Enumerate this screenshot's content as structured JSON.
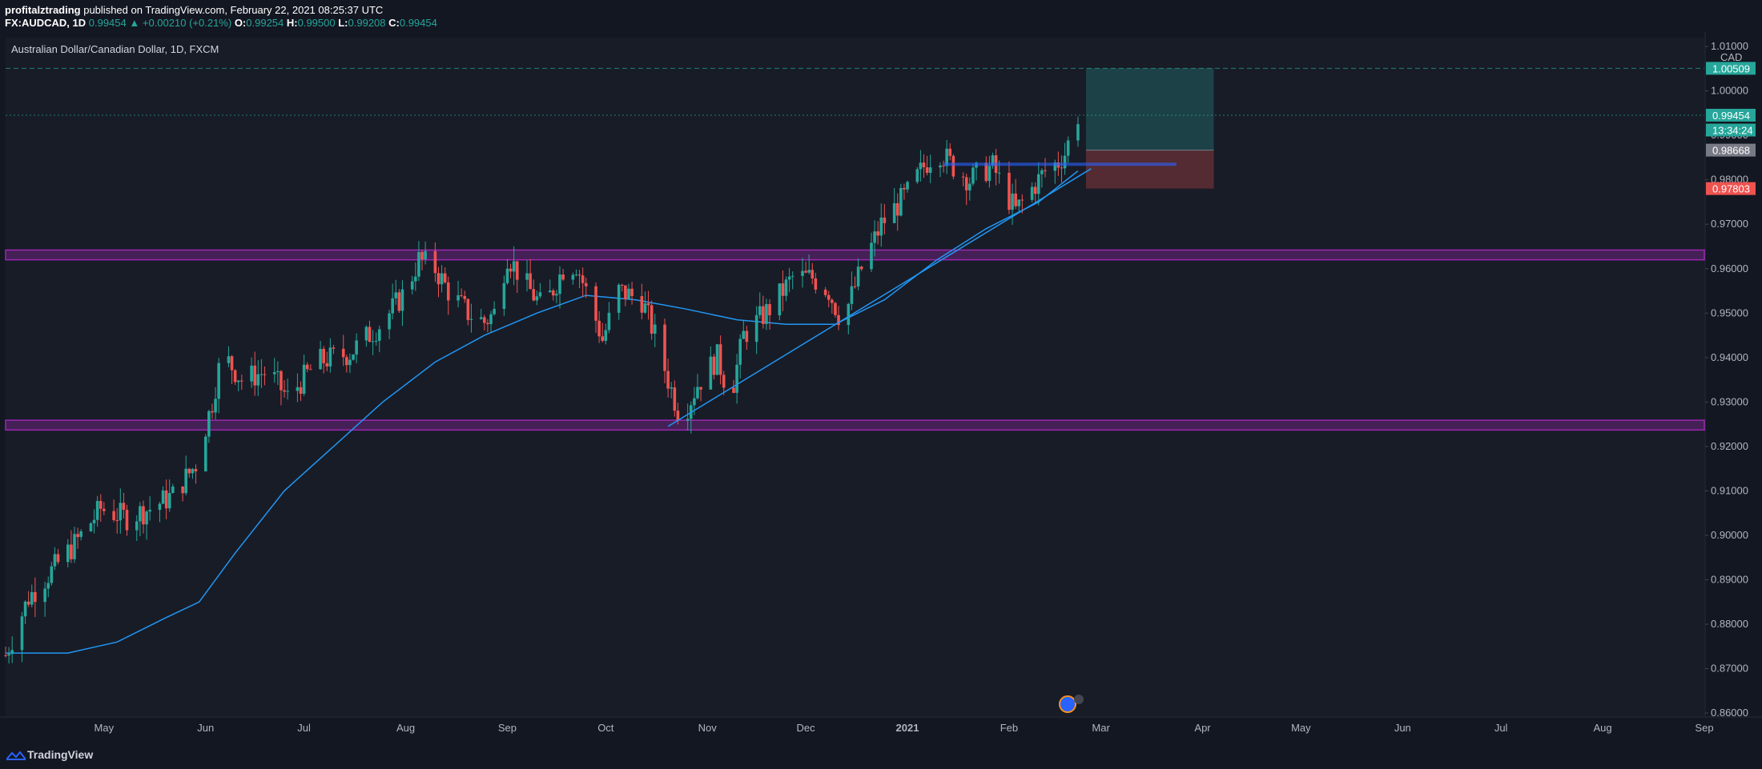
{
  "header": {
    "author": "profitalztrading",
    "published_text": " published on TradingView.com, February 22, 2021 08:25:37 UTC",
    "symbol": "FX:AUDCAD, 1D",
    "last": "0.99454",
    "arrow": "▲",
    "change": "+0.00210 (+0.21%)",
    "o_label": "O:",
    "o_value": "0.99254",
    "h_label": "H:",
    "h_value": "0.99500",
    "l_label": "L:",
    "l_value": "0.99208",
    "c_label": "C:",
    "c_value": "0.99454"
  },
  "chart_title": "Australian Dollar/Canadian Dollar, 1D, FXCM",
  "footer": {
    "brand": "TradingView"
  },
  "colors": {
    "background": "#131722",
    "up": "#26a69a",
    "down": "#ef5350",
    "ma": "#2196f3",
    "zone": "#9c27b0",
    "profit_zone": "#26a69a",
    "loss_zone": "#ef5350"
  },
  "chart_data": {
    "type": "candlestick",
    "title": "Australian Dollar/Canadian Dollar, 1D, FXCM",
    "y_axis": {
      "currency": "CAD",
      "ticks": [
        "1.01000",
        "1.00000",
        "0.99000",
        "0.98000",
        "0.97000",
        "0.96000",
        "0.95000",
        "0.94000",
        "0.93000",
        "0.92000",
        "0.91000",
        "0.90000",
        "0.89000",
        "0.88000",
        "0.87000",
        "0.86000"
      ],
      "range": [
        0.8593,
        1.012
      ]
    },
    "x_axis": {
      "ticks": [
        {
          "label": "May",
          "date": "2020-05-01"
        },
        {
          "label": "Jun",
          "date": "2020-06-01"
        },
        {
          "label": "Jul",
          "date": "2020-07-01"
        },
        {
          "label": "Aug",
          "date": "2020-08-01"
        },
        {
          "label": "Sep",
          "date": "2020-09-01"
        },
        {
          "label": "Oct",
          "date": "2020-10-01"
        },
        {
          "label": "Nov",
          "date": "2020-11-01"
        },
        {
          "label": "Dec",
          "date": "2020-12-01"
        },
        {
          "label": "2021",
          "date": "2021-01-01"
        },
        {
          "label": "Feb",
          "date": "2021-02-01"
        },
        {
          "label": "Mar",
          "date": "2021-03-01"
        },
        {
          "label": "Apr",
          "date": "2021-04-01"
        },
        {
          "label": "May",
          "date": "2021-05-01"
        },
        {
          "label": "Jun",
          "date": "2021-06-01"
        },
        {
          "label": "Jul",
          "date": "2021-07-01"
        },
        {
          "label": "Aug",
          "date": "2021-08-01"
        },
        {
          "label": "Sep",
          "date": "2021-09-01"
        }
      ],
      "range": [
        "2020-04-01",
        "2021-09-01"
      ]
    },
    "price_path": [
      [
        "2020-04-01",
        0.873
      ],
      [
        "2020-04-08",
        0.886
      ],
      [
        "2020-04-15",
        0.892
      ],
      [
        "2020-04-22",
        0.898
      ],
      [
        "2020-04-30",
        0.906
      ],
      [
        "2020-05-08",
        0.904
      ],
      [
        "2020-05-15",
        0.906
      ],
      [
        "2020-05-22",
        0.909
      ],
      [
        "2020-05-29",
        0.916
      ],
      [
        "2020-06-03",
        0.93
      ],
      [
        "2020-06-06",
        0.941
      ],
      [
        "2020-06-12",
        0.935
      ],
      [
        "2020-06-20",
        0.937
      ],
      [
        "2020-06-26",
        0.931
      ],
      [
        "2020-07-05",
        0.939
      ],
      [
        "2020-07-15",
        0.941
      ],
      [
        "2020-07-25",
        0.948
      ],
      [
        "2020-08-01",
        0.955
      ],
      [
        "2020-08-05",
        0.962
      ],
      [
        "2020-08-10",
        0.96
      ],
      [
        "2020-08-14",
        0.955
      ],
      [
        "2020-08-20",
        0.95
      ],
      [
        "2020-08-25",
        0.948
      ],
      [
        "2020-08-28",
        0.95
      ],
      [
        "2020-09-01",
        0.963
      ],
      [
        "2020-09-07",
        0.956
      ],
      [
        "2020-09-12",
        0.951
      ],
      [
        "2020-09-18",
        0.96
      ],
      [
        "2020-09-22",
        0.961
      ],
      [
        "2020-09-26",
        0.953
      ],
      [
        "2020-09-30",
        0.944
      ],
      [
        "2020-10-05",
        0.955
      ],
      [
        "2020-10-12",
        0.953
      ],
      [
        "2020-10-16",
        0.945
      ],
      [
        "2020-10-20",
        0.935
      ],
      [
        "2020-10-24",
        0.926
      ],
      [
        "2020-10-29",
        0.934
      ],
      [
        "2020-11-04",
        0.94
      ],
      [
        "2020-11-08",
        0.931
      ],
      [
        "2020-11-12",
        0.945
      ],
      [
        "2020-11-20",
        0.951
      ],
      [
        "2020-11-27",
        0.958
      ],
      [
        "2020-12-03",
        0.958
      ],
      [
        "2020-12-08",
        0.955
      ],
      [
        "2020-12-12",
        0.948
      ],
      [
        "2020-12-18",
        0.96
      ],
      [
        "2020-12-24",
        0.97
      ],
      [
        "2021-01-01",
        0.977
      ],
      [
        "2021-01-06",
        0.983
      ],
      [
        "2021-01-10",
        0.987
      ],
      [
        "2021-01-15",
        0.983
      ],
      [
        "2021-01-20",
        0.98
      ],
      [
        "2021-01-24",
        0.982
      ],
      [
        "2021-01-27",
        0.983
      ],
      [
        "2021-01-31",
        0.977
      ],
      [
        "2021-02-03",
        0.973
      ],
      [
        "2021-02-08",
        0.978
      ],
      [
        "2021-02-12",
        0.982
      ],
      [
        "2021-02-16",
        0.984
      ],
      [
        "2021-02-18",
        0.986
      ],
      [
        "2021-02-22",
        0.9945
      ]
    ],
    "moving_average": [
      [
        "2020-04-01",
        0.8735
      ],
      [
        "2020-04-20",
        0.8735
      ],
      [
        "2020-05-05",
        0.876
      ],
      [
        "2020-05-20",
        0.8815
      ],
      [
        "2020-05-30",
        0.885
      ],
      [
        "2020-06-10",
        0.896
      ],
      [
        "2020-06-25",
        0.91
      ],
      [
        "2020-07-10",
        0.92
      ],
      [
        "2020-07-25",
        0.93
      ],
      [
        "2020-08-10",
        0.939
      ],
      [
        "2020-08-25",
        0.945
      ],
      [
        "2020-09-10",
        0.95
      ],
      [
        "2020-09-25",
        0.954
      ],
      [
        "2020-10-10",
        0.953
      ],
      [
        "2020-10-25",
        0.951
      ],
      [
        "2020-11-10",
        0.9485
      ],
      [
        "2020-11-25",
        0.9475
      ],
      [
        "2020-12-10",
        0.9475
      ],
      [
        "2020-12-25",
        0.953
      ],
      [
        "2021-01-10",
        0.962
      ],
      [
        "2021-01-25",
        0.969
      ],
      [
        "2021-02-10",
        0.975
      ],
      [
        "2021-02-22",
        0.982
      ]
    ],
    "trendline": {
      "from": [
        "2020-10-20",
        0.9245
      ],
      "to": [
        "2021-02-26",
        0.9825
      ]
    },
    "support_zones": [
      {
        "from": 0.962,
        "to": 0.9642
      },
      {
        "from": 0.9237,
        "to": 0.9259
      }
    ],
    "horizontal_level": {
      "value": 0.9835,
      "from": "2021-01-12",
      "to": "2021-03-24"
    },
    "position": {
      "start": "2021-02-22",
      "end": "2021-04-01",
      "target": 1.00509,
      "entry": 0.98668,
      "stop": 0.97803
    },
    "price_labels": [
      {
        "text": "1.00509",
        "value": 1.00509,
        "color": "#26a69a"
      },
      {
        "text": "0.99454",
        "value": 0.99454,
        "color": "#26a69a"
      },
      {
        "text": "13:34:24",
        "value": 0.9912,
        "color": "#26a69a"
      },
      {
        "text": "0.98668",
        "value": 0.98668,
        "color": "#787b86"
      },
      {
        "text": "0.97803",
        "value": 0.97803,
        "color": "#ef5350"
      }
    ]
  }
}
